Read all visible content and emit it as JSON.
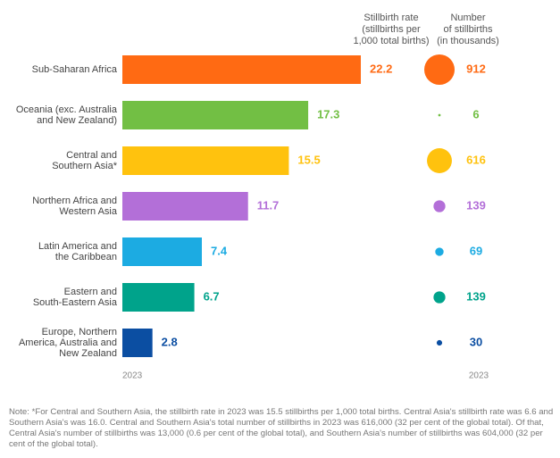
{
  "chart_data": {
    "type": "bar",
    "categories": [
      [
        "Sub-Saharan Africa"
      ],
      [
        "Oceania (exc. Australia",
        "and New Zealand)"
      ],
      [
        "Central and",
        "Southern Asia*"
      ],
      [
        "Northern Africa and",
        "Western Asia"
      ],
      [
        "Latin America and",
        "the Caribbean"
      ],
      [
        "Eastern and",
        "South-Eastern Asia"
      ],
      [
        "Europe, Northern",
        "America, Australia and",
        "New Zealand"
      ]
    ],
    "rate_header": [
      "Stillbirth rate",
      "(stillbirths per",
      "1,000 total births)"
    ],
    "values": [
      22.2,
      17.3,
      15.5,
      11.7,
      7.4,
      6.7,
      2.8
    ],
    "count_header": [
      "Number",
      "of stillbirths",
      "(in thousands)"
    ],
    "counts": [
      912,
      6,
      616,
      139,
      69,
      139,
      30
    ],
    "colors": [
      "#ff6a13",
      "#72bf44",
      "#ffc20e",
      "#b36fd8",
      "#1cabe2",
      "#00a38b",
      "#0b4ea2"
    ],
    "year_labels": [
      "2023",
      "2023"
    ],
    "note": "Note: *For Central and Southern Asia, the stillbirth rate in 2023 was 15.5 stillbirths per 1,000 total births. Central Asia's stillbirth rate was 6.6 and Southern Asia's was 16.0. Central and Southern Asia's total number of stillbirths in 2023 was 616,000 (32 per cent of the global total). Of that, Central Asia's number of stillbirths was 13,000 (0.6 per cent of the global total), and Southern Asia's number of stillbirths was 604,000 (32 per cent of the global total)."
  }
}
